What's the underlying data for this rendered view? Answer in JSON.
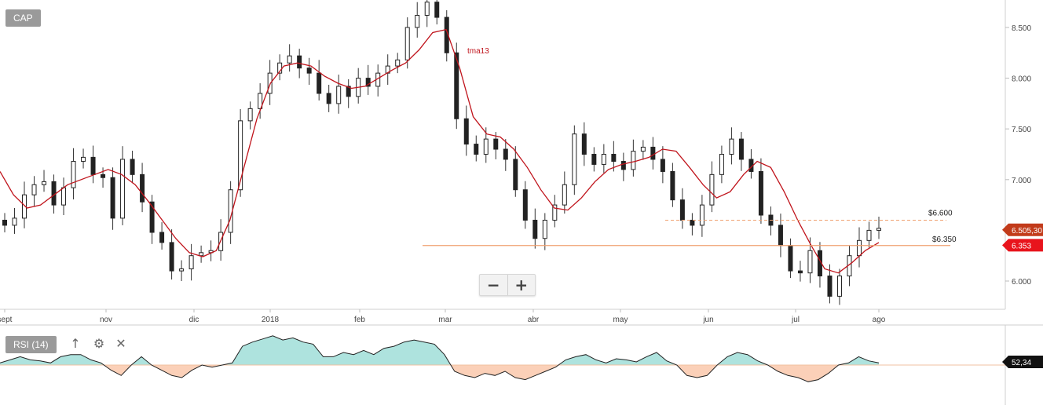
{
  "symbol_label": "CAP",
  "chart_data": [
    {
      "type": "candlestick",
      "title": "",
      "price_axis": {
        "range": [
          5.8,
          8.8
        ],
        "ticks": [
          "6.000",
          "6.500",
          "7.000",
          "7.500",
          "8.000",
          "8.500"
        ],
        "tick_values": [
          6.0,
          6.5,
          7.0,
          7.5,
          8.0,
          8.5
        ]
      },
      "date_axis": {
        "ticks": [
          "sept",
          "nov",
          "dic",
          "2018",
          "feb",
          "mar",
          "abr",
          "may",
          "jun",
          "jul",
          "ago"
        ]
      },
      "grid": false,
      "ohlc_closes_approx": [
        6.55,
        6.62,
        6.85,
        6.95,
        6.98,
        6.75,
        6.92,
        7.18,
        7.22,
        7.05,
        7.02,
        6.62,
        7.2,
        7.05,
        6.78,
        6.48,
        6.38,
        6.1,
        6.12,
        6.25,
        6.28,
        6.3,
        6.48,
        6.9,
        7.58,
        7.7,
        7.85,
        8.05,
        8.15,
        8.22,
        8.1,
        8.05,
        7.85,
        7.75,
        7.92,
        7.82,
        8.0,
        7.92,
        8.05,
        8.12,
        8.18,
        8.5,
        8.62,
        8.75,
        8.6,
        8.25,
        7.6,
        7.35,
        7.25,
        7.4,
        7.3,
        7.2,
        6.9,
        6.6,
        6.42,
        6.6,
        6.75,
        6.95,
        7.45,
        7.25,
        7.15,
        7.25,
        7.18,
        7.1,
        7.28,
        7.32,
        7.2,
        7.08,
        6.8,
        6.6,
        6.55,
        6.75,
        7.05,
        7.25,
        7.4,
        7.2,
        7.08,
        6.65,
        6.55,
        6.35,
        6.1,
        6.08,
        6.3,
        6.05,
        5.85,
        6.05,
        6.25,
        6.4,
        6.5,
        6.52
      ],
      "moving_average": {
        "name": "tma13",
        "color": "#c0141c",
        "values_approx": [
          7.08,
          6.85,
          6.72,
          6.75,
          6.85,
          6.95,
          7.0,
          7.05,
          7.1,
          7.05,
          6.95,
          6.78,
          6.6,
          6.42,
          6.28,
          6.24,
          6.3,
          6.6,
          7.1,
          7.6,
          7.95,
          8.12,
          8.15,
          8.12,
          8.02,
          7.95,
          7.9,
          7.92,
          8.0,
          8.08,
          8.15,
          8.28,
          8.45,
          8.48,
          8.1,
          7.62,
          7.45,
          7.42,
          7.3,
          7.12,
          6.9,
          6.72,
          6.7,
          6.82,
          6.98,
          7.1,
          7.15,
          7.18,
          7.22,
          7.3,
          7.28,
          7.12,
          6.95,
          6.82,
          6.88,
          7.05,
          7.18,
          7.12,
          6.88,
          6.6,
          6.35,
          6.12,
          6.08,
          6.18,
          6.3,
          6.38
        ]
      },
      "levels": [
        {
          "label": "$6.600",
          "value": 6.6,
          "style": "dashed",
          "color": "#f0a070"
        },
        {
          "label": "$6.350",
          "value": 6.35,
          "style": "solid",
          "color": "#f0a070"
        }
      ],
      "price_tags": [
        {
          "label": "6.505,30",
          "value": 6.505,
          "color": "#c23b1a"
        },
        {
          "label": "6.353",
          "value": 6.353,
          "color": "#e8141c"
        }
      ]
    },
    {
      "type": "area",
      "title": "RSI (14)",
      "baseline": 50,
      "value_tag": "52,34",
      "colors": {
        "above": "#aee3de",
        "below": "#fbd0b8"
      },
      "values_approx": [
        52,
        55,
        58,
        55,
        54,
        52,
        58,
        60,
        60,
        55,
        52,
        45,
        40,
        50,
        58,
        50,
        45,
        40,
        38,
        45,
        50,
        48,
        50,
        52,
        68,
        72,
        75,
        78,
        74,
        76,
        72,
        70,
        58,
        58,
        62,
        60,
        64,
        60,
        66,
        68,
        72,
        74,
        72,
        70,
        60,
        44,
        40,
        38,
        42,
        40,
        44,
        38,
        36,
        40,
        44,
        48,
        55,
        58,
        60,
        55,
        52,
        56,
        55,
        53,
        58,
        62,
        54,
        50,
        40,
        38,
        40,
        50,
        58,
        62,
        60,
        54,
        50,
        44,
        40,
        38,
        34,
        36,
        42,
        50,
        52,
        58,
        54,
        52
      ]
    }
  ]
}
